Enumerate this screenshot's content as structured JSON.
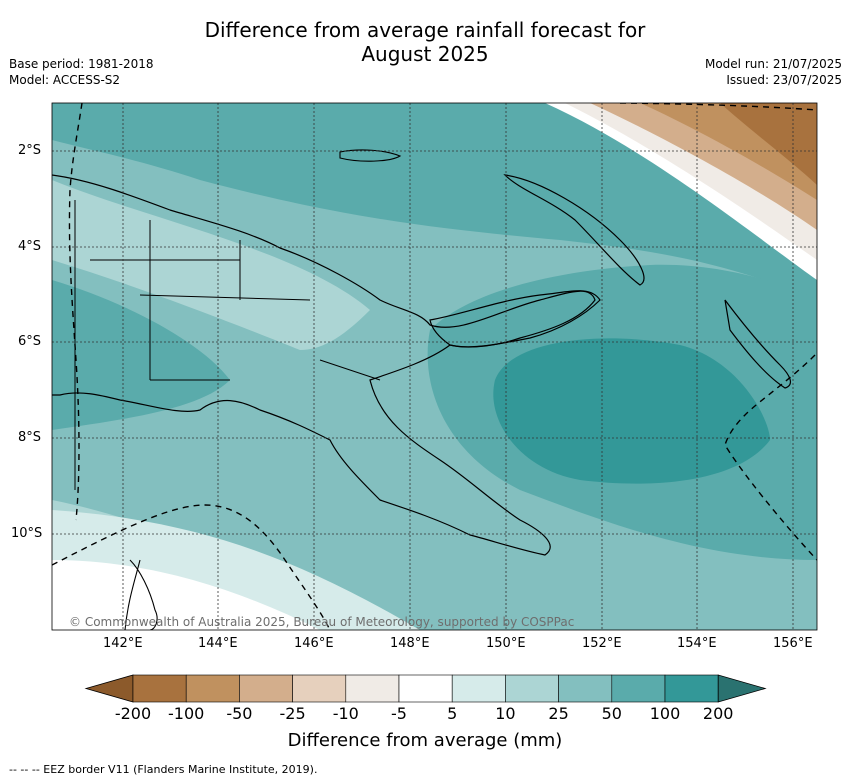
{
  "title_line1": "Difference from average rainfall forecast for",
  "title_line2": "August 2025",
  "base_period": "Base period: 1981-2018",
  "model": "Model: ACCESS-S2",
  "model_run": "Model run: 21/07/2025",
  "issued": "Issued: 23/07/2025",
  "lat_labels": [
    "2°S",
    "4°S",
    "6°S",
    "8°S",
    "10°S"
  ],
  "lon_labels": [
    "142°E",
    "144°E",
    "146°E",
    "148°E",
    "150°E",
    "152°E",
    "154°E",
    "156°E"
  ],
  "copyright": "© Commonwealth of Australia 2025, Bureau of Meteorology, supported by COSPPac",
  "colorbar": {
    "title": "Difference from average (mm)",
    "labels": [
      "-200",
      "-100",
      "-50",
      "-25",
      "-10",
      "-5",
      "5",
      "10",
      "25",
      "50",
      "100",
      "200"
    ],
    "colors": [
      "#8c5a2b",
      "#a8723e",
      "#c0915f",
      "#d3ae8c",
      "#e6d0bd",
      "#f0ebe6",
      "#ffffff",
      "#d6ebea",
      "#acd5d4",
      "#83bfbf",
      "#5aabab",
      "#339898",
      "#2a7270"
    ]
  },
  "footer": "--  --  -- EEZ border V11 (Flanders Marine Institute, 2019)."
}
